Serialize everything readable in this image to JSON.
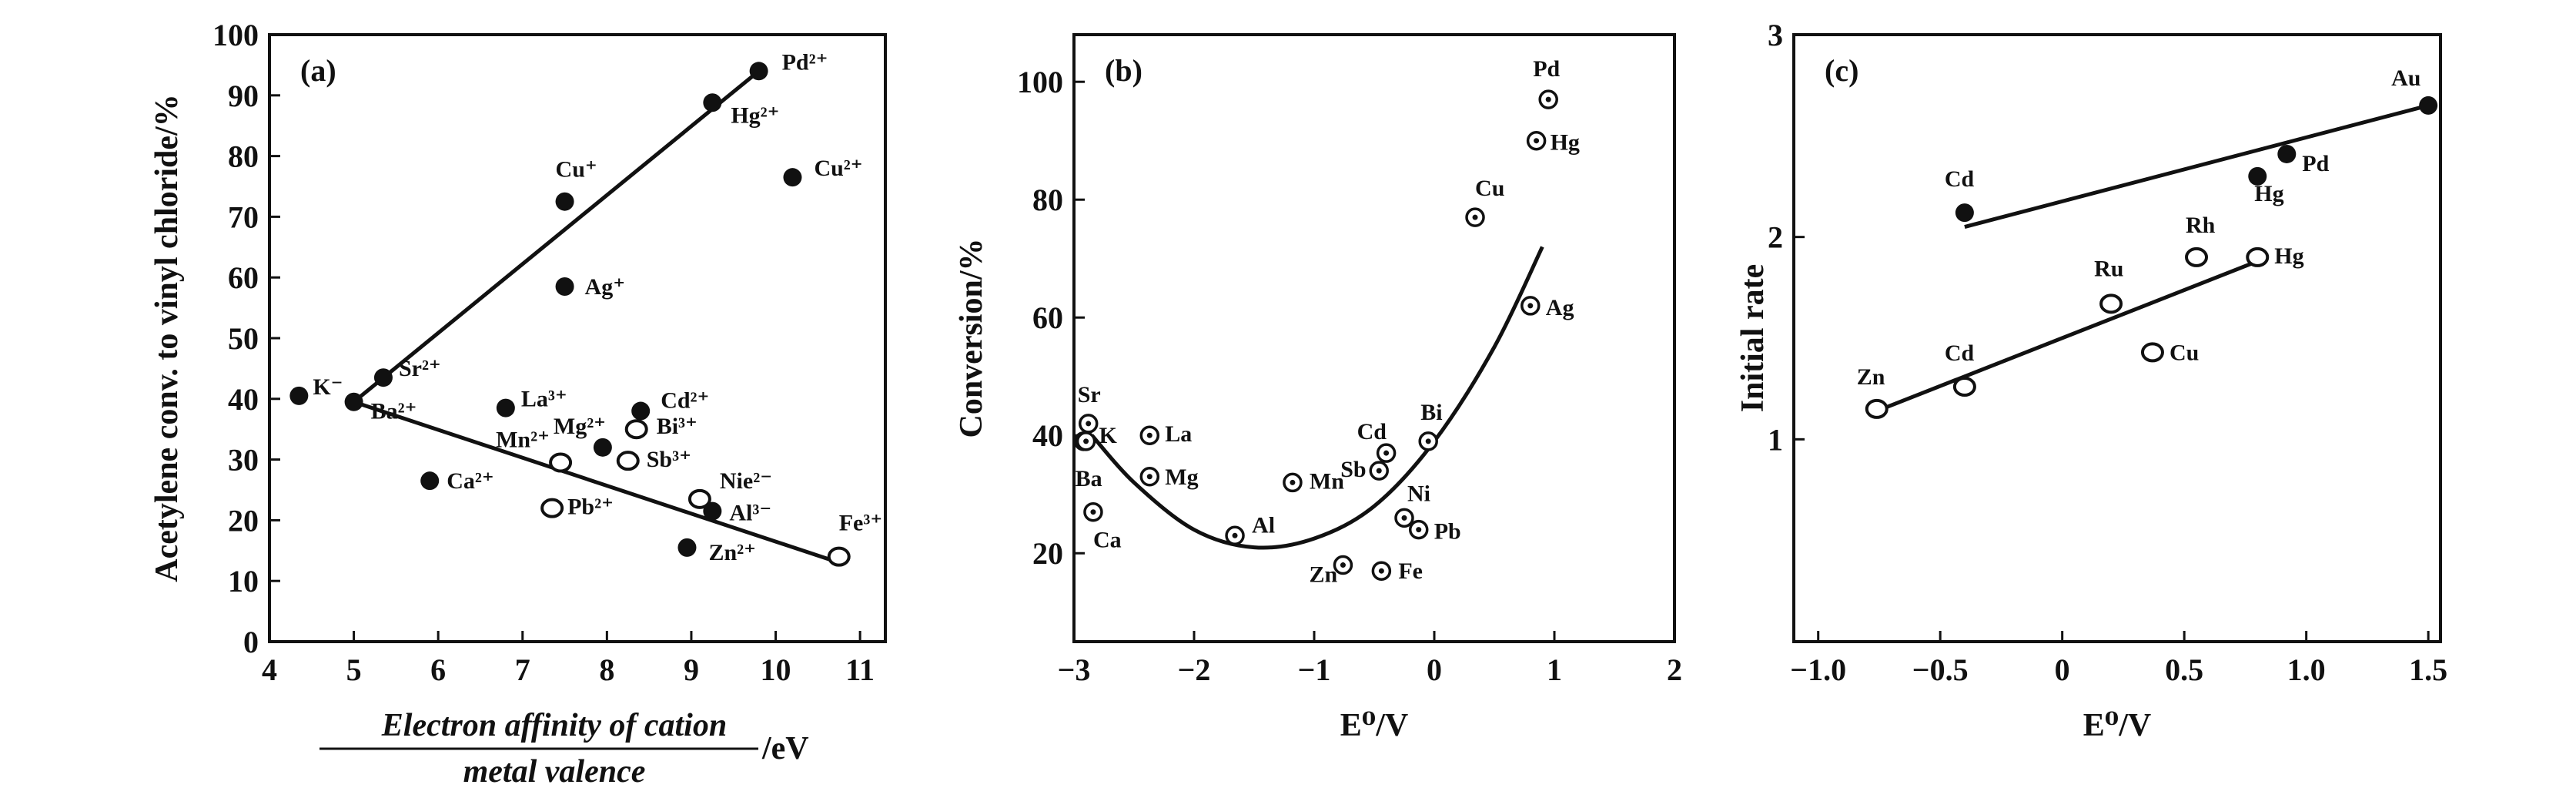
{
  "chart_data": [
    {
      "type": "scatter",
      "panel": "(a)",
      "ylabel": "Acetylene conv. to vinyl chloride/%",
      "xlabel_numerator": "Electron affinity of cation",
      "xlabel_denominator": "metal valence",
      "xlabel_unit": "/eV",
      "xlim": [
        4,
        11.3
      ],
      "ylim": [
        0,
        100
      ],
      "xticks": [
        4,
        5,
        6,
        7,
        8,
        9,
        10,
        11
      ],
      "yticks": [
        0,
        10,
        20,
        30,
        40,
        50,
        60,
        70,
        80,
        90,
        100
      ],
      "points": [
        {
          "label": "K⁻",
          "x": 4.35,
          "y": 40.5,
          "filled": true
        },
        {
          "label": "Ba²⁺",
          "x": 5.0,
          "y": 39.5,
          "filled": true
        },
        {
          "label": "Sr²⁺",
          "x": 5.35,
          "y": 43.5,
          "filled": true
        },
        {
          "label": "Ca²⁺",
          "x": 5.9,
          "y": 26.5,
          "filled": true
        },
        {
          "label": "La³⁺",
          "x": 6.8,
          "y": 38.5,
          "filled": true
        },
        {
          "label": "Mn²⁺",
          "x": 7.45,
          "y": 29.5,
          "filled": false
        },
        {
          "label": "Pb²⁺",
          "x": 7.35,
          "y": 22.0,
          "filled": false
        },
        {
          "label": "Cu⁺",
          "x": 7.5,
          "y": 72.5,
          "filled": true
        },
        {
          "label": "Ag⁺",
          "x": 7.5,
          "y": 58.5,
          "filled": true
        },
        {
          "label": "Mg²⁺",
          "x": 7.95,
          "y": 32.0,
          "filled": true
        },
        {
          "label": "Sb³⁺",
          "x": 8.25,
          "y": 29.8,
          "filled": false
        },
        {
          "label": "Cd²⁺",
          "x": 8.4,
          "y": 38.0,
          "filled": true
        },
        {
          "label": "Bi³⁺",
          "x": 8.35,
          "y": 35.0,
          "filled": false
        },
        {
          "label": "Nie²⁻",
          "x": 9.1,
          "y": 23.5,
          "filled": false
        },
        {
          "label": "Al³⁻",
          "x": 9.25,
          "y": 21.5,
          "filled": true
        },
        {
          "label": "Zn²⁺",
          "x": 8.95,
          "y": 15.5,
          "filled": true
        },
        {
          "label": "Hg²⁺",
          "x": 9.25,
          "y": 88.8,
          "filled": true
        },
        {
          "label": "Pd²⁺",
          "x": 9.8,
          "y": 94.0,
          "filled": true
        },
        {
          "label": "Cu²⁺",
          "x": 10.2,
          "y": 76.5,
          "filled": true
        },
        {
          "label": "Fe³⁺",
          "x": 10.75,
          "y": 14.0,
          "filled": false
        }
      ],
      "fit_lines": [
        {
          "x": [
            5.0,
            9.8
          ],
          "y": [
            39.5,
            94.0
          ]
        },
        {
          "x": [
            5.0,
            10.8
          ],
          "y": [
            39.5,
            12.8
          ]
        }
      ]
    },
    {
      "type": "scatter",
      "panel": "(b)",
      "ylabel": "Conversion/%",
      "xlabel": "E⁰/V",
      "xlim": [
        -3,
        2
      ],
      "ylim": [
        5,
        108
      ],
      "xticks": [
        -3,
        -2,
        -1,
        0,
        1,
        2
      ],
      "yticks": [
        20,
        40,
        60,
        80,
        100
      ],
      "points": [
        {
          "label": "Sr",
          "x": -2.88,
          "y": 42.0
        },
        {
          "label": "K",
          "x": -2.92,
          "y": 39.0
        },
        {
          "label": "Ba",
          "x": -2.9,
          "y": 39.0
        },
        {
          "label": "Ca",
          "x": -2.84,
          "y": 27.0
        },
        {
          "label": "La",
          "x": -2.37,
          "y": 40.0
        },
        {
          "label": "Mg",
          "x": -2.37,
          "y": 33.0
        },
        {
          "label": "Al",
          "x": -1.66,
          "y": 23.0
        },
        {
          "label": "Mn",
          "x": -1.18,
          "y": 32.0
        },
        {
          "label": "Zn",
          "x": -0.76,
          "y": 18.0
        },
        {
          "label": "Fe",
          "x": -0.44,
          "y": 17.0
        },
        {
          "label": "Sb",
          "x": -0.46,
          "y": 34.0
        },
        {
          "label": "Cd",
          "x": -0.4,
          "y": 37.0
        },
        {
          "label": "Bi",
          "x": -0.05,
          "y": 39.0
        },
        {
          "label": "Ni",
          "x": -0.25,
          "y": 26.0
        },
        {
          "label": "Pb",
          "x": -0.13,
          "y": 24.0
        },
        {
          "label": "Cu",
          "x": 0.34,
          "y": 77.0
        },
        {
          "label": "Ag",
          "x": 0.8,
          "y": 62.0
        },
        {
          "label": "Hg",
          "x": 0.85,
          "y": 90.0
        },
        {
          "label": "Pd",
          "x": 0.95,
          "y": 97.0
        }
      ],
      "fit_curve": {
        "x": [
          -2.85,
          -2.5,
          -2.0,
          -1.5,
          -1.0,
          -0.5,
          0.0,
          0.5,
          0.9
        ],
        "y": [
          40.0,
          32.0,
          24.0,
          21.0,
          22.5,
          28.0,
          39.0,
          55.0,
          72.0
        ]
      }
    },
    {
      "type": "scatter",
      "panel": "(c)",
      "ylabel": "Initial rate",
      "xlabel": "E⁰/V",
      "xlim": [
        -1.1,
        1.55
      ],
      "ylim": [
        0,
        3
      ],
      "xticks": [
        -1.0,
        -0.5,
        0,
        0.5,
        1.0,
        1.5
      ],
      "xtick_labels": [
        "−1.0",
        "−0.5",
        "0",
        "0.5",
        "1.0",
        "1.5"
      ],
      "yticks": [
        1,
        2,
        3
      ],
      "points": [
        {
          "label": "Cd",
          "x": -0.4,
          "y": 2.12,
          "filled": true
        },
        {
          "label": "Hg",
          "x": 0.8,
          "y": 2.3,
          "filled": true
        },
        {
          "label": "Pd",
          "x": 0.92,
          "y": 2.41,
          "filled": true
        },
        {
          "label": "Au",
          "x": 1.5,
          "y": 2.65,
          "filled": true
        },
        {
          "label": "Zn",
          "x": -0.76,
          "y": 1.15,
          "filled": false
        },
        {
          "label": "Cd",
          "x": -0.4,
          "y": 1.26,
          "filled": false
        },
        {
          "label": "Ru",
          "x": 0.2,
          "y": 1.67,
          "filled": false
        },
        {
          "label": "Rh",
          "x": 0.55,
          "y": 1.9,
          "filled": false
        },
        {
          "label": "Cu",
          "x": 0.37,
          "y": 1.43,
          "filled": false
        },
        {
          "label": "Hg",
          "x": 0.8,
          "y": 1.9,
          "filled": false
        }
      ],
      "fit_lines": [
        {
          "x": [
            -0.4,
            1.5
          ],
          "y": [
            2.05,
            2.65
          ]
        },
        {
          "x": [
            -0.76,
            0.8
          ],
          "y": [
            1.14,
            1.88
          ]
        }
      ]
    }
  ]
}
